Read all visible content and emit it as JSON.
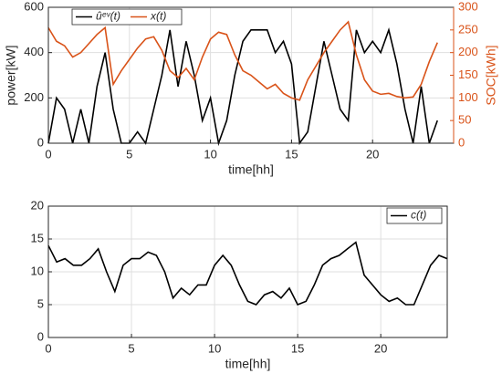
{
  "chart_data": [
    {
      "type": "line",
      "xlabel": "time[hh]",
      "ylabel": "power[kW]",
      "y2label": "SOC[kWh]",
      "x": [
        0,
        0.5,
        1,
        1.5,
        2,
        2.5,
        3,
        3.5,
        4,
        4.5,
        5,
        5.5,
        6,
        6.5,
        7,
        7.5,
        8,
        8.5,
        9,
        9.5,
        10,
        10.5,
        11,
        11.5,
        12,
        12.5,
        13,
        13.5,
        14,
        14.5,
        15,
        15.5,
        16,
        16.5,
        17,
        17.5,
        18,
        18.5,
        19,
        19.5,
        20,
        20.5,
        21,
        21.5,
        22,
        22.5,
        23,
        23.5,
        24
      ],
      "series": [
        {
          "name": "ûᵉᵛ(t)",
          "color": "#000000",
          "axis": "y",
          "values": [
            0,
            200,
            150,
            0,
            150,
            0,
            250,
            400,
            150,
            0,
            0,
            50,
            0,
            150,
            300,
            500,
            250,
            450,
            300,
            100,
            200,
            0,
            100,
            300,
            450,
            500,
            500,
            500,
            400,
            450,
            350,
            0,
            50,
            250,
            450,
            300,
            150,
            100,
            500,
            400,
            450,
            400,
            500,
            350,
            150,
            0,
            250,
            0,
            100
          ]
        },
        {
          "name": "x(t)",
          "color": "#d95319",
          "axis": "y2",
          "values": [
            255,
            225,
            215,
            190,
            200,
            220,
            240,
            255,
            130,
            160,
            185,
            210,
            230,
            235,
            205,
            160,
            145,
            165,
            140,
            190,
            230,
            245,
            240,
            195,
            160,
            150,
            135,
            120,
            130,
            110,
            100,
            95,
            140,
            170,
            200,
            225,
            250,
            268,
            195,
            140,
            115,
            108,
            110,
            103,
            100,
            102,
            130,
            180,
            222
          ]
        }
      ],
      "xlim": [
        0,
        25
      ],
      "xticks": [
        0,
        5,
        10,
        15,
        20
      ],
      "ylim": [
        0,
        600
      ],
      "yticks": [
        0,
        200,
        400,
        600
      ],
      "y2lim": [
        0,
        300
      ],
      "y2ticks": [
        0,
        50,
        100,
        150,
        200,
        250,
        300
      ],
      "grid": true,
      "legend": "upper left"
    },
    {
      "type": "line",
      "xlabel": "time[hh]",
      "x": [
        0,
        0.5,
        1,
        1.5,
        2,
        2.5,
        3,
        3.5,
        4,
        4.5,
        5,
        5.5,
        6,
        6.5,
        7,
        7.5,
        8,
        8.5,
        9,
        9.5,
        10,
        10.5,
        11,
        11.5,
        12,
        12.5,
        13,
        13.5,
        14,
        14.5,
        15,
        15.5,
        16,
        16.5,
        17,
        17.5,
        18,
        18.5,
        19,
        19.5,
        20,
        20.5,
        21,
        21.5,
        22,
        22.5,
        23,
        23.5,
        24
      ],
      "series": [
        {
          "name": "c(t)",
          "color": "#000000",
          "values": [
            14,
            11.5,
            12,
            11,
            11,
            12,
            13.5,
            10,
            7,
            11,
            12,
            12,
            13,
            12.5,
            10,
            6,
            7.5,
            6.5,
            8,
            8,
            11,
            12.5,
            11,
            8,
            5.5,
            5,
            6.5,
            7,
            6,
            7.5,
            5,
            5.5,
            8,
            11,
            12,
            12.5,
            13.5,
            14.5,
            9.5,
            8,
            6.5,
            5.5,
            6,
            5,
            5,
            8,
            11,
            12.5,
            12
          ]
        }
      ],
      "xlim": [
        0,
        24
      ],
      "xticks": [
        0,
        5,
        10,
        15,
        20
      ],
      "ylim": [
        0,
        20
      ],
      "yticks": [
        0,
        5,
        10,
        15,
        20
      ],
      "grid": true,
      "legend": "upper right"
    }
  ]
}
